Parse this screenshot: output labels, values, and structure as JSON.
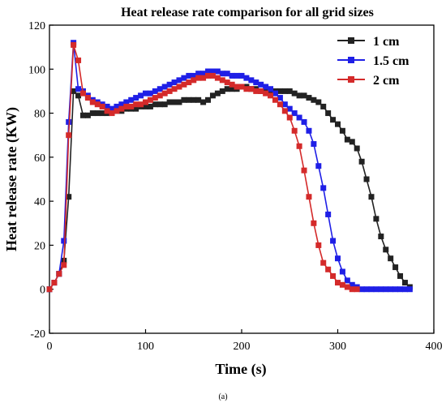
{
  "chart_data": {
    "type": "line",
    "title": "Heat release rate comparison for all grid sizes",
    "xlabel": "Time (s)",
    "ylabel": "Heat release rate (KW)",
    "xlim": [
      0,
      400
    ],
    "ylim": [
      -20,
      120
    ],
    "xticks": [
      0,
      100,
      200,
      300,
      400
    ],
    "yticks": [
      -20,
      0,
      20,
      40,
      60,
      80,
      100,
      120
    ],
    "grid": false,
    "legend_position": "top-right",
    "series": [
      {
        "name": "1 cm",
        "color": "#222222",
        "marker": "square",
        "x": [
          0,
          5,
          10,
          15,
          20,
          25,
          30,
          35,
          40,
          45,
          50,
          55,
          60,
          65,
          70,
          75,
          80,
          85,
          90,
          95,
          100,
          105,
          110,
          115,
          120,
          125,
          130,
          135,
          140,
          145,
          150,
          155,
          160,
          165,
          170,
          175,
          180,
          185,
          190,
          195,
          200,
          205,
          210,
          215,
          220,
          225,
          230,
          235,
          240,
          245,
          250,
          255,
          260,
          265,
          270,
          275,
          280,
          285,
          290,
          295,
          300,
          305,
          310,
          315,
          320,
          325,
          330,
          335,
          340,
          345,
          350,
          355,
          360,
          365,
          370,
          375
        ],
        "y": [
          0,
          3,
          7,
          13,
          42,
          90,
          88,
          79,
          79,
          80,
          80,
          80,
          80,
          81,
          81,
          81,
          82,
          82,
          82,
          83,
          83,
          83,
          84,
          84,
          84,
          85,
          85,
          85,
          86,
          86,
          86,
          86,
          85,
          86,
          88,
          89,
          90,
          91,
          91,
          91,
          92,
          92,
          91,
          91,
          90,
          90,
          90,
          90,
          90,
          90,
          90,
          89,
          88,
          88,
          87,
          86,
          85,
          83,
          80,
          77,
          75,
          72,
          68,
          67,
          64,
          58,
          50,
          42,
          32,
          24,
          18,
          14,
          10,
          6,
          3,
          1
        ]
      },
      {
        "name": "1.5 cm",
        "color": "#1f1fe6",
        "marker": "square",
        "x": [
          0,
          5,
          10,
          15,
          20,
          25,
          30,
          35,
          40,
          45,
          50,
          55,
          60,
          65,
          70,
          75,
          80,
          85,
          90,
          95,
          100,
          105,
          110,
          115,
          120,
          125,
          130,
          135,
          140,
          145,
          150,
          155,
          160,
          165,
          170,
          175,
          180,
          185,
          190,
          195,
          200,
          205,
          210,
          215,
          220,
          225,
          230,
          235,
          240,
          245,
          250,
          255,
          260,
          265,
          270,
          275,
          280,
          285,
          290,
          295,
          300,
          305,
          310,
          315,
          320,
          325,
          330,
          335,
          340,
          345,
          350,
          355,
          360,
          365,
          370,
          375
        ],
        "y": [
          0,
          3,
          7,
          22,
          76,
          112,
          91,
          90,
          88,
          86,
          85,
          84,
          83,
          82,
          83,
          84,
          85,
          86,
          87,
          88,
          89,
          89,
          90,
          91,
          92,
          93,
          94,
          95,
          96,
          97,
          97,
          98,
          98,
          99,
          99,
          99,
          98,
          98,
          97,
          97,
          97,
          96,
          95,
          94,
          93,
          92,
          91,
          89,
          87,
          84,
          82,
          80,
          78,
          76,
          72,
          66,
          56,
          46,
          34,
          22,
          14,
          8,
          4,
          2,
          1,
          0,
          0,
          0,
          0,
          0,
          0,
          0,
          0,
          0,
          0,
          0
        ]
      },
      {
        "name": "2 cm",
        "color": "#d42a2a",
        "marker": "square",
        "x": [
          0,
          5,
          10,
          15,
          20,
          25,
          30,
          35,
          40,
          45,
          50,
          55,
          60,
          65,
          70,
          75,
          80,
          85,
          90,
          95,
          100,
          105,
          110,
          115,
          120,
          125,
          130,
          135,
          140,
          145,
          150,
          155,
          160,
          165,
          170,
          175,
          180,
          185,
          190,
          195,
          200,
          205,
          210,
          215,
          220,
          225,
          230,
          235,
          240,
          245,
          250,
          255,
          260,
          265,
          270,
          275,
          280,
          285,
          290,
          295,
          300,
          305,
          310,
          315,
          320
        ],
        "y": [
          0,
          3,
          7,
          11,
          70,
          111,
          104,
          89,
          87,
          85,
          84,
          83,
          81,
          80,
          81,
          82,
          83,
          83,
          84,
          84,
          85,
          86,
          87,
          88,
          89,
          90,
          91,
          92,
          93,
          94,
          95,
          96,
          96,
          97,
          97,
          96,
          95,
          94,
          93,
          92,
          92,
          91,
          91,
          90,
          90,
          89,
          88,
          86,
          84,
          81,
          78,
          72,
          65,
          54,
          42,
          30,
          20,
          12,
          9,
          6,
          3,
          2,
          1,
          0,
          0
        ]
      }
    ]
  },
  "caption": "(a)"
}
